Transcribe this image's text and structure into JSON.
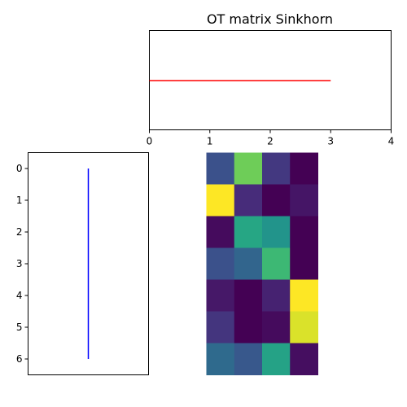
{
  "chart_data": [
    {
      "type": "line",
      "panel": "top",
      "title": "OT matrix Sinkhorn",
      "xlim": [
        0,
        4
      ],
      "x_ticks": [
        "0",
        "1",
        "2",
        "3",
        "4"
      ],
      "series": [
        {
          "color": "#ff0000",
          "x": [
            0,
            1,
            2,
            3
          ],
          "y": [
            0.25,
            0.25,
            0.25,
            0.25
          ]
        }
      ]
    },
    {
      "type": "line",
      "panel": "left",
      "ylim": [
        6.5,
        -0.5
      ],
      "y_ticks": [
        "0",
        "1",
        "2",
        "3",
        "4",
        "5",
        "6"
      ],
      "series": [
        {
          "color": "#0000ff",
          "x": [
            0.143,
            0.143,
            0.143,
            0.143,
            0.143,
            0.143,
            0.143
          ],
          "y": [
            0,
            1,
            2,
            3,
            4,
            5,
            6
          ]
        }
      ]
    },
    {
      "type": "heatmap",
      "panel": "main",
      "colormap": "viridis",
      "rows": 7,
      "cols": 4,
      "vmin": 0,
      "vmax": 1,
      "values": [
        [
          0.25,
          0.78,
          0.17,
          0.0
        ],
        [
          1.0,
          0.13,
          0.0,
          0.06
        ],
        [
          0.03,
          0.6,
          0.52,
          0.0
        ],
        [
          0.25,
          0.33,
          0.68,
          0.0
        ],
        [
          0.07,
          0.0,
          0.1,
          1.0
        ],
        [
          0.16,
          0.0,
          0.03,
          0.95
        ],
        [
          0.35,
          0.28,
          0.58,
          0.04
        ]
      ]
    }
  ]
}
